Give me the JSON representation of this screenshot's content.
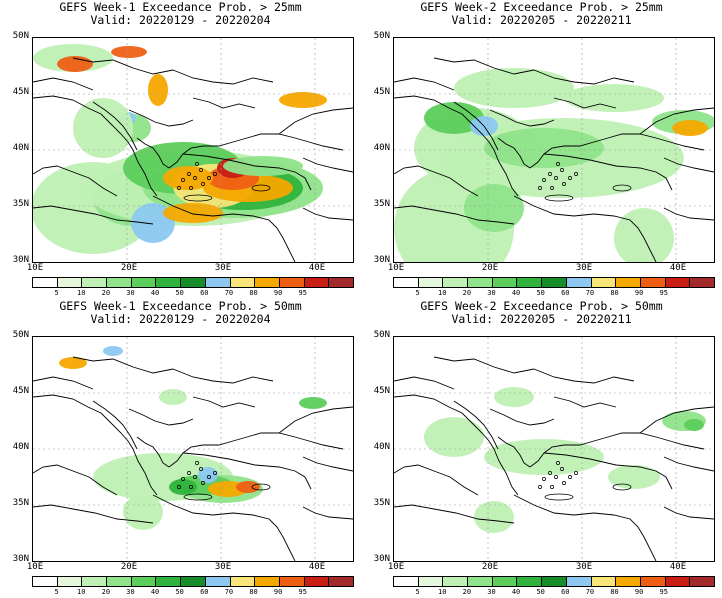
{
  "panels": [
    {
      "title": "GEFS Week-1 Exceedance Prob. > 25mm",
      "valid": "Valid: 20220129 - 20220204"
    },
    {
      "title": "GEFS Week-2 Exceedance Prob. > 25mm",
      "valid": "Valid: 20220205 - 20220211"
    },
    {
      "title": "GEFS Week-1 Exceedance Prob. > 50mm",
      "valid": "Valid: 20220129 - 20220204"
    },
    {
      "title": "GEFS Week-2 Exceedance Prob. > 50mm",
      "valid": "Valid: 20220205 - 20220211"
    }
  ],
  "lat_labels": [
    "50N",
    "45N",
    "40N",
    "35N",
    "30N"
  ],
  "lon_labels": [
    "10E",
    "20E",
    "30E",
    "40E"
  ],
  "colorbar": {
    "labels": [
      "5",
      "10",
      "20",
      "30",
      "40",
      "50",
      "60",
      "70",
      "80",
      "90",
      "95"
    ],
    "colors": [
      "#ffffff",
      "#e5f8de",
      "#bff0b4",
      "#8fe38a",
      "#5cce5c",
      "#2fb33c",
      "#178c2a",
      "#8cc8f0",
      "#f8e67a",
      "#f5a800",
      "#ee5f14",
      "#c81e14",
      "#a32a2a"
    ]
  }
}
